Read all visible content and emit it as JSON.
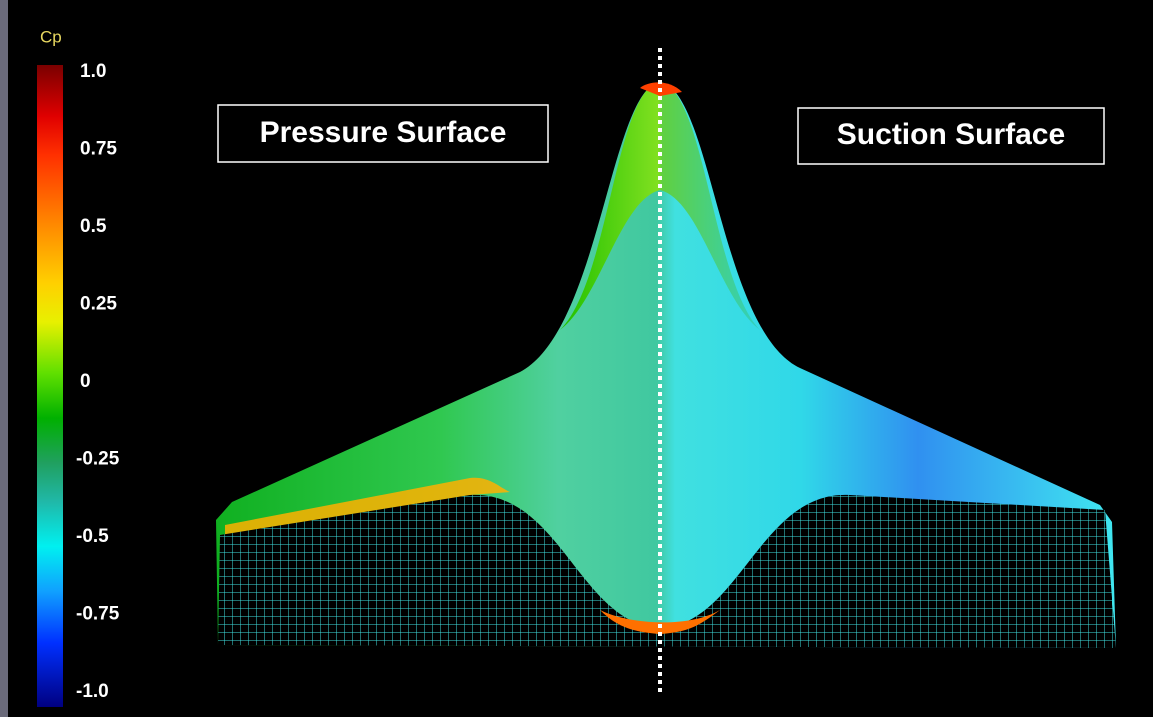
{
  "colorbar": {
    "title": "Cp",
    "labels": [
      "1.0",
      "0.75",
      "0.5",
      "0.25",
      "0",
      "-0.25",
      "-0.5",
      "-0.75",
      "-1.0"
    ]
  },
  "annotations": {
    "left": "Pressure Surface",
    "right": "Suction Surface"
  }
}
